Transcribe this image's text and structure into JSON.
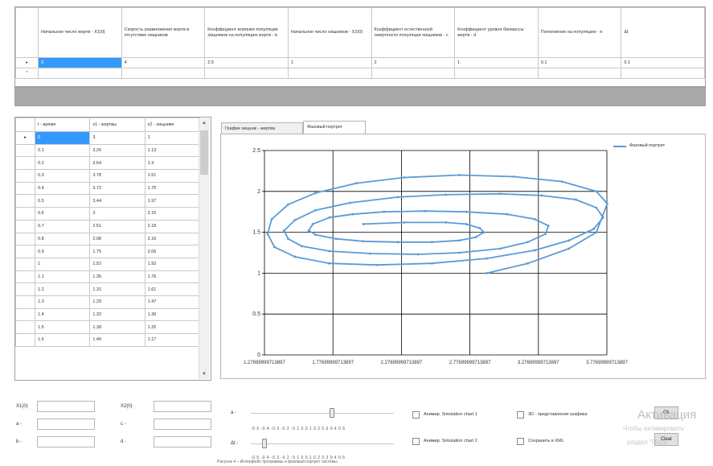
{
  "params_grid": {
    "headers": [
      "Начальное число жертв - X1(0)",
      "Скорость размножения жертв в отсутствие хищников",
      "Коэффициент влияния популяции хищников на популяцию жертв - b",
      "Начальное число хищников - X2(0)",
      "Коэффициент естественной смертности популяции хищников - c",
      "Коэффициент уровня биомассы жертв - d",
      "Пополнение на популяцию - e",
      "Δt"
    ],
    "row1_marker": "▸",
    "row2_marker": "*",
    "row1": [
      "3",
      "4",
      "2.5",
      "1",
      "2",
      "1",
      "0.1",
      "0.1"
    ],
    "row2": [
      "",
      "",
      "",
      "",
      "",
      "",
      "",
      ""
    ]
  },
  "data_grid": {
    "headers": [
      "t - время",
      "x1 - жертвы",
      "x2 - хищники"
    ],
    "row_marker": "▸",
    "rows": [
      [
        "0",
        "3",
        "1"
      ],
      [
        "0.1",
        "3.26",
        "1.13"
      ],
      [
        "0.2",
        "3.64",
        "1.3"
      ],
      [
        "0.3",
        "3.78",
        "1.51"
      ],
      [
        "0.4",
        "3.72",
        "1.75"
      ],
      [
        "0.5",
        "3.44",
        "1.97"
      ],
      [
        "0.6",
        "3",
        "2.15"
      ],
      [
        "0.7",
        "2.51",
        "2.18"
      ],
      [
        "0.8",
        "2.08",
        "2.16"
      ],
      [
        "0.9",
        "1.75",
        "2.06"
      ],
      [
        "1",
        "1.52",
        "1.92"
      ],
      [
        "1.1",
        "1.35",
        "1.76"
      ],
      [
        "1.2",
        "1.31",
        "1.61"
      ],
      [
        "1.3",
        "1.29",
        "1.47"
      ],
      [
        "1.4",
        "1.32",
        "1.36"
      ],
      [
        "1.5",
        "1.38",
        "1.25"
      ],
      [
        "1.6",
        "1.49",
        "1.17"
      ]
    ],
    "scroll_up": "▲",
    "scroll_down": "▼"
  },
  "tabs": [
    {
      "label": "График хищник - жертва"
    },
    {
      "label": "Фазовый портрет"
    }
  ],
  "chart_data": {
    "type": "line",
    "title": "",
    "xlabel": "",
    "ylabel": "",
    "legend": "Фазовый портрет",
    "legend_position": "top-right",
    "grid": true,
    "color": "#5b9bd5",
    "ylim": [
      0,
      2.5
    ],
    "y_ticks": [
      "0",
      "0.5",
      "1",
      "1.5",
      "2",
      "2.5"
    ],
    "x_ticks": [
      "1.27699999713897",
      "1.77699999713897",
      "2.27699999713897",
      "2.77699999713897",
      "3.27699999713897",
      "3.77699999713897"
    ],
    "x_domain": [
      1.277,
      3.777
    ],
    "series": [
      {
        "name": "Фазовый портрет",
        "x": [
          2.0,
          2.3,
          2.6,
          2.75,
          2.85,
          2.88,
          2.82,
          2.7,
          2.5,
          2.25,
          2.0,
          1.8,
          1.65,
          1.6,
          1.63,
          1.75,
          1.92,
          2.15,
          2.45,
          2.75,
          3.05,
          3.25,
          3.35,
          3.33,
          3.2,
          3.0,
          2.7,
          2.4,
          2.05,
          1.75,
          1.55,
          1.45,
          1.42,
          1.5,
          1.65,
          1.9,
          2.25,
          2.6,
          3.0,
          3.3,
          3.55,
          3.7,
          3.75,
          3.68,
          3.5,
          3.25,
          2.9,
          2.5,
          2.1,
          1.75,
          1.5,
          1.35,
          1.3,
          1.33,
          1.45,
          1.65,
          1.95,
          2.3,
          2.7,
          3.1,
          3.45,
          3.7,
          3.78,
          3.7,
          3.5,
          3.2,
          2.9
        ],
        "y": [
          1.6,
          1.62,
          1.62,
          1.6,
          1.55,
          1.5,
          1.44,
          1.4,
          1.38,
          1.38,
          1.39,
          1.42,
          1.47,
          1.52,
          1.6,
          1.68,
          1.72,
          1.75,
          1.76,
          1.75,
          1.72,
          1.66,
          1.58,
          1.48,
          1.38,
          1.3,
          1.25,
          1.23,
          1.24,
          1.27,
          1.33,
          1.42,
          1.52,
          1.65,
          1.77,
          1.86,
          1.93,
          1.96,
          1.97,
          1.95,
          1.9,
          1.8,
          1.68,
          1.54,
          1.4,
          1.28,
          1.18,
          1.12,
          1.1,
          1.12,
          1.2,
          1.32,
          1.48,
          1.66,
          1.84,
          1.98,
          2.1,
          2.17,
          2.2,
          2.18,
          2.12,
          2.0,
          1.85,
          1.5,
          1.3,
          1.12,
          1.0
        ]
      }
    ]
  },
  "bottom": {
    "labels": {
      "x1": "X1(0)",
      "x2": "X2(0)",
      "a": "a -",
      "b": "b -",
      "c": "c -",
      "d": "d -",
      "slider1": "a -",
      "slider2": "Δt -"
    },
    "slider_ticks_1": "-0.5 -0.4 -0.3 -0.2 -0.1  0  0.1  0.2  0.3  0.4  0.5",
    "slider_ticks_2": "-0.5 -0.4 -0.3 -0.2 -0.1  0  0.1  0.2  0.3  0.4  0.5",
    "checkbox_1": "Анимир. Simulation chart 1",
    "checkbox_2": "Анимир. Simulation chart 2",
    "checkbox_3": "3D - представление графика",
    "checkbox_4": "Сохранить в XML",
    "ok_button": "Ok",
    "clear_button": "Clear",
    "watermark_1": "Активация",
    "watermark_2": "Чтобы активировать",
    "watermark_3": "раздел \"Пара",
    "caption": "Рисунок 4 – Интерфейс программы и фазовый портрет системы"
  }
}
